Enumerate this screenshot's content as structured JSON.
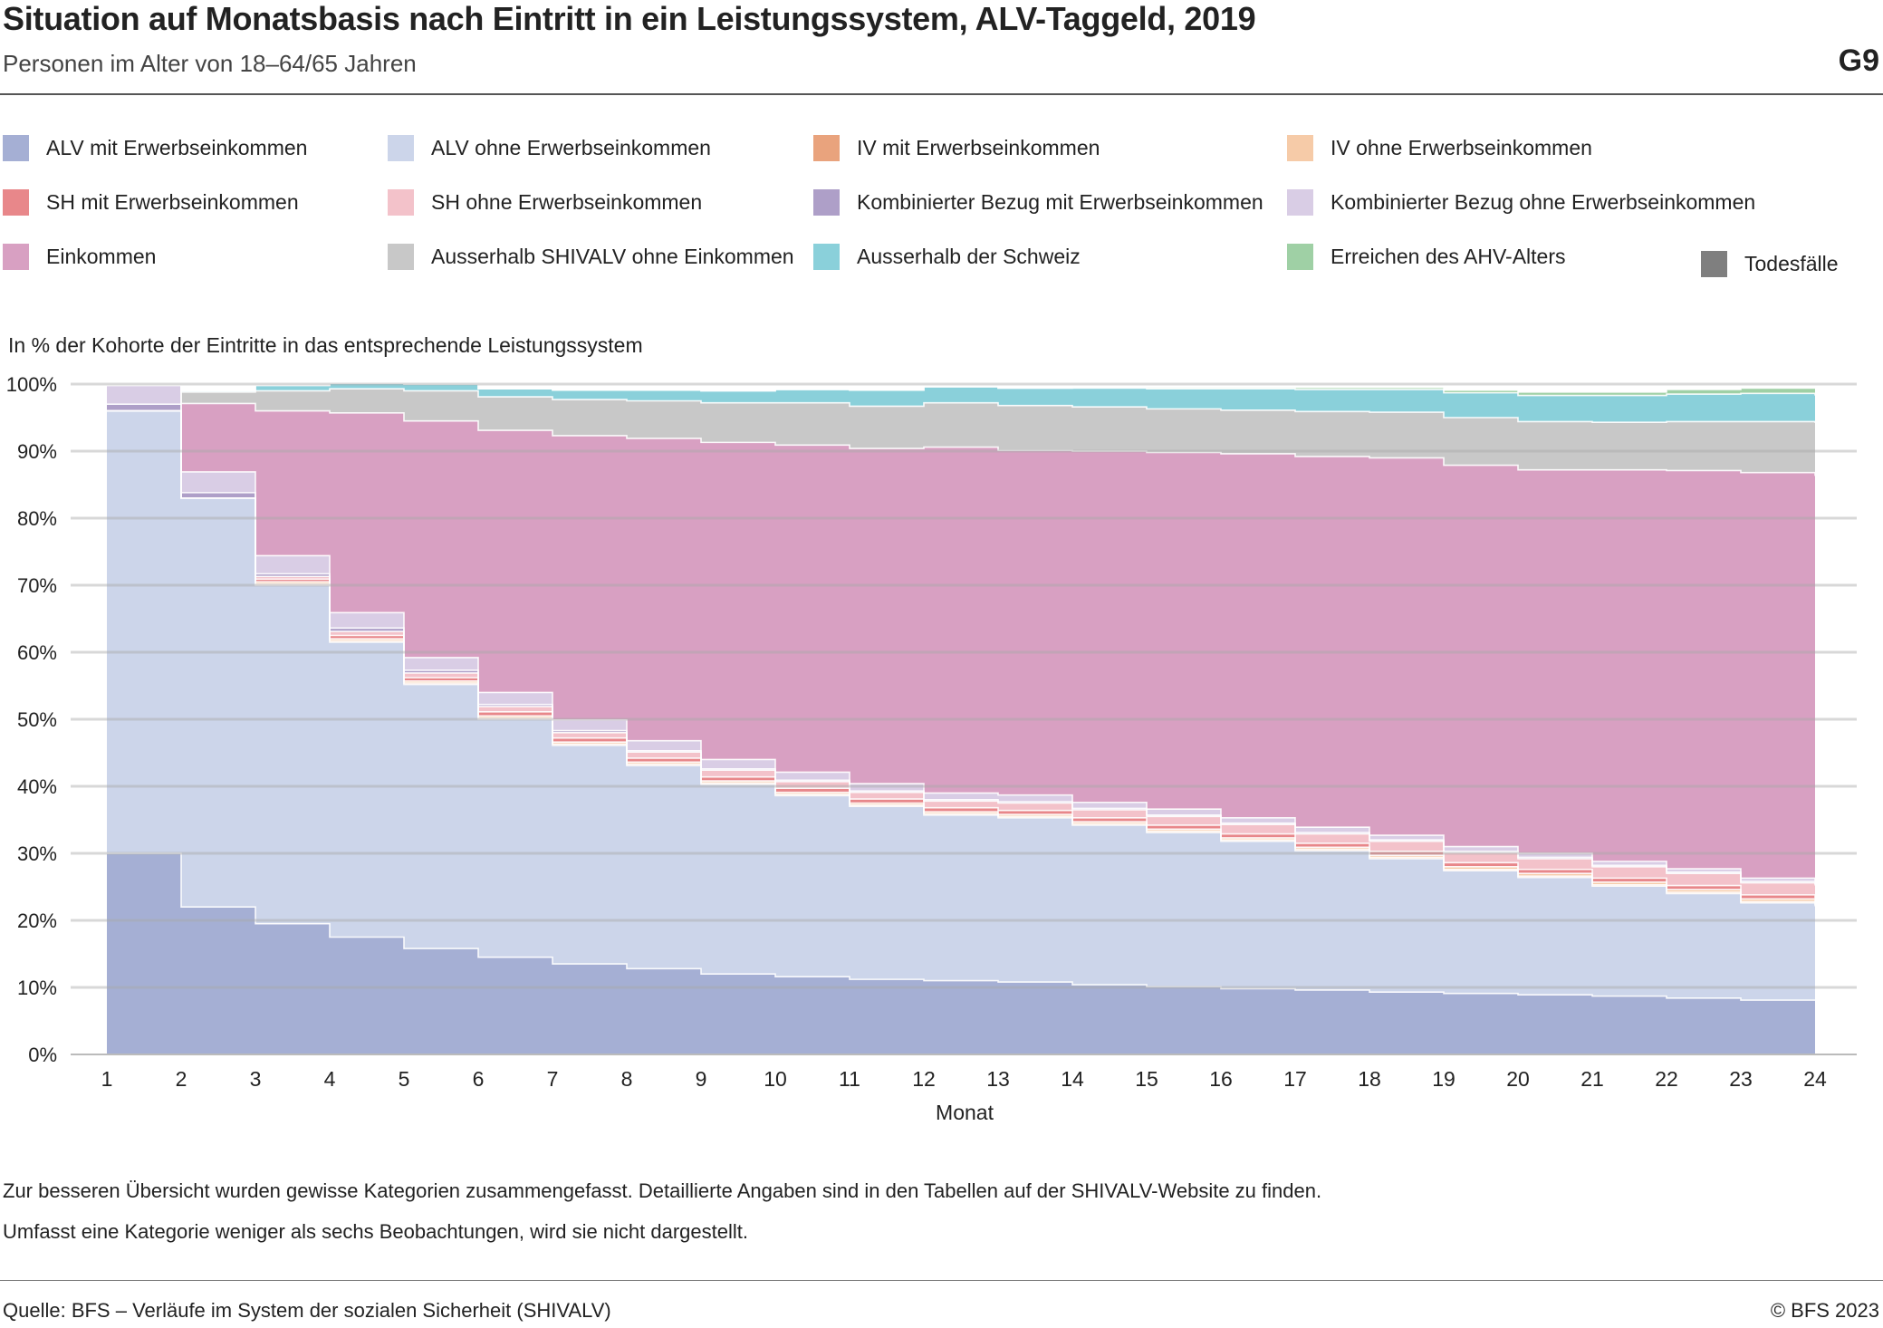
{
  "header": {
    "title": "Situation auf Monatsbasis nach Eintritt in ein Leistungssystem, ALV-Taggeld, 2019",
    "subtitle": "Personen im Alter von 18–64/65 Jahren",
    "figure_id": "G9"
  },
  "legend": [
    {
      "label": "ALV mit Erwerbseinkommen",
      "color": "#a5afd4"
    },
    {
      "label": "ALV ohne Erwerbseinkommen",
      "color": "#ccd5ea"
    },
    {
      "label": "IV mit Erwerbseinkommen",
      "color": "#e9a37d"
    },
    {
      "label": "IV ohne Erwerbseinkommen",
      "color": "#f6cba8"
    },
    {
      "label": "SH mit Erwerbseinkommen",
      "color": "#e8878a"
    },
    {
      "label": "SH ohne Erwerbseinkommen",
      "color": "#f3c2ca"
    },
    {
      "label": "Kombinierter Bezug mit Erwerbseinkommen",
      "color": "#ae9fc8"
    },
    {
      "label": "Kombinierter Bezug ohne Erwerbseinkommen",
      "color": "#d9cde5"
    },
    {
      "label": "Einkommen",
      "color": "#d8a0c2"
    },
    {
      "label": "Ausserhalb SHIVALV ohne Einkommen",
      "color": "#c8c8c8"
    },
    {
      "label": "Ausserhalb der Schweiz",
      "color": "#8ad0da"
    },
    {
      "label": "Erreichen des AHV-Alters",
      "color": "#9fd0a5"
    },
    {
      "label": "Todesfälle",
      "color": "#7f7f7f"
    }
  ],
  "y_axis_title": "In % der Kohorte der Eintritte in das entsprechende Leistungssystem",
  "notes": [
    "Zur besseren Übersicht wurden gewisse Kategorien zusammengefasst. Detaillierte Angaben sind in den Tabellen auf der SHIVALV-Website zu finden.",
    "Umfasst eine Kategorie weniger als sechs Beobachtungen, wird sie nicht dargestellt."
  ],
  "footer": {
    "source": "Quelle: BFS – Verläufe im System der sozialen Sicherheit (SHIVALV)",
    "copyright": "© BFS 2023"
  },
  "chart_data": {
    "type": "area",
    "stacked": true,
    "step": true,
    "xlabel": "Monat",
    "ylabel": "In % der Kohorte der Eintritte in das entsprechende Leistungssystem",
    "x": [
      1,
      2,
      3,
      4,
      5,
      6,
      7,
      8,
      9,
      10,
      11,
      12,
      13,
      14,
      15,
      16,
      17,
      18,
      19,
      20,
      21,
      22,
      23,
      24
    ],
    "ylim": [
      0,
      100
    ],
    "yticks": [
      "0%",
      "10%",
      "20%",
      "30%",
      "40%",
      "50%",
      "60%",
      "70%",
      "80%",
      "90%",
      "100%"
    ],
    "grid": true,
    "legend_position": "top",
    "series": [
      {
        "name": "ALV mit Erwerbseinkommen",
        "color": "#a5afd4",
        "values": [
          30.0,
          22.0,
          19.5,
          17.5,
          15.8,
          14.5,
          13.5,
          12.8,
          12.0,
          11.6,
          11.2,
          11.0,
          10.8,
          10.4,
          10.1,
          9.8,
          9.6,
          9.3,
          9.1,
          8.9,
          8.7,
          8.4,
          8.1,
          8.1
        ]
      },
      {
        "name": "ALV ohne Erwerbseinkommen",
        "color": "#ccd5ea",
        "values": [
          66.0,
          61.0,
          50.5,
          44.0,
          39.4,
          35.5,
          32.6,
          30.3,
          28.3,
          27.0,
          25.8,
          24.7,
          24.5,
          23.8,
          23.0,
          22.0,
          20.8,
          19.9,
          18.3,
          17.5,
          16.4,
          15.6,
          14.5,
          14.0
        ]
      },
      {
        "name": "IV mit Erwerbseinkommen",
        "color": "#e9a37d",
        "values": [
          0,
          0,
          0.2,
          0.2,
          0.2,
          0.2,
          0.2,
          0.2,
          0.2,
          0.2,
          0.2,
          0.2,
          0.2,
          0.2,
          0.2,
          0.2,
          0.2,
          0.2,
          0.2,
          0.2,
          0.2,
          0.2,
          0.2,
          0.2
        ]
      },
      {
        "name": "IV ohne Erwerbseinkommen",
        "color": "#f6cba8",
        "values": [
          0,
          0,
          0.3,
          0.3,
          0.3,
          0.3,
          0.3,
          0.3,
          0.3,
          0.3,
          0.3,
          0.3,
          0.3,
          0.3,
          0.3,
          0.3,
          0.3,
          0.3,
          0.4,
          0.4,
          0.4,
          0.4,
          0.4,
          0.4
        ]
      },
      {
        "name": "SH mit Erwerbseinkommen",
        "color": "#e8878a",
        "values": [
          0,
          0,
          0.4,
          0.5,
          0.5,
          0.6,
          0.6,
          0.6,
          0.6,
          0.6,
          0.6,
          0.6,
          0.6,
          0.6,
          0.6,
          0.6,
          0.6,
          0.6,
          0.6,
          0.6,
          0.6,
          0.6,
          0.6,
          0.6
        ]
      },
      {
        "name": "SH ohne Erwerbseinkommen",
        "color": "#f3c2ca",
        "values": [
          0,
          0,
          0.4,
          0.6,
          0.7,
          0.8,
          0.8,
          0.9,
          1.0,
          1.0,
          1.0,
          1.0,
          1.1,
          1.2,
          1.3,
          1.4,
          1.4,
          1.5,
          1.5,
          1.6,
          1.7,
          1.8,
          1.8,
          1.9
        ]
      },
      {
        "name": "Kombinierter Bezug mit Erwerbseinkommen",
        "color": "#ae9fc8",
        "values": [
          1.0,
          0.8,
          0.4,
          0.5,
          0.4,
          0.3,
          0.3,
          0.2,
          0.2,
          0.2,
          0.2,
          0.2,
          0.2,
          0.2,
          0.2,
          0.2,
          0.2,
          0.2,
          0.2,
          0.2,
          0.2,
          0.2,
          0.2,
          0.2
        ]
      },
      {
        "name": "Kombinierter Bezug ohne Erwerbseinkommen",
        "color": "#d9cde5",
        "values": [
          2.8,
          3.1,
          2.7,
          2.3,
          1.9,
          1.8,
          1.6,
          1.5,
          1.4,
          1.2,
          1.1,
          1.0,
          1.0,
          0.9,
          0.9,
          0.8,
          0.8,
          0.7,
          0.7,
          0.6,
          0.6,
          0.5,
          0.5,
          0.4
        ]
      },
      {
        "name": "Einkommen",
        "color": "#d8a0c2",
        "values": [
          0,
          10.2,
          21.6,
          29.8,
          35.3,
          39.1,
          42.4,
          45.1,
          47.3,
          48.8,
          50.0,
          51.6,
          51.4,
          52.4,
          53.2,
          54.3,
          55.3,
          56.3,
          56.9,
          57.2,
          58.4,
          59.4,
          60.5,
          60.5
        ]
      },
      {
        "name": "Ausserhalb SHIVALV ohne Einkommen",
        "color": "#c8c8c8",
        "values": [
          0.2,
          1.7,
          3.0,
          3.6,
          4.5,
          5.0,
          5.4,
          5.6,
          5.9,
          6.3,
          6.3,
          6.6,
          6.7,
          6.6,
          6.5,
          6.5,
          6.7,
          6.8,
          7.1,
          7.2,
          7.1,
          7.3,
          7.6,
          7.9
        ]
      },
      {
        "name": "Ausserhalb der Schweiz",
        "color": "#8ad0da",
        "values": [
          0,
          0.2,
          0.8,
          0.8,
          1.0,
          1.2,
          1.4,
          1.6,
          1.8,
          2.0,
          2.4,
          2.4,
          2.6,
          2.8,
          3.0,
          3.2,
          3.3,
          3.4,
          3.7,
          3.9,
          4.0,
          4.1,
          4.2,
          4.1
        ]
      },
      {
        "name": "Erreichen des AHV-Alters",
        "color": "#9fd0a5",
        "values": [
          0,
          0,
          0,
          0,
          0,
          0,
          0,
          0,
          0,
          0,
          0,
          0,
          0,
          0.1,
          0.2,
          0.2,
          0.3,
          0.3,
          0.4,
          0.5,
          0.5,
          0.7,
          0.8,
          1.0
        ]
      },
      {
        "name": "Todesfälle",
        "color": "#7f7f7f",
        "values": [
          0,
          0,
          0,
          0,
          0,
          0,
          0,
          0,
          0,
          0,
          0,
          0,
          0,
          0,
          0,
          0,
          0,
          0,
          0,
          0,
          0,
          0,
          0,
          0
        ]
      }
    ]
  }
}
